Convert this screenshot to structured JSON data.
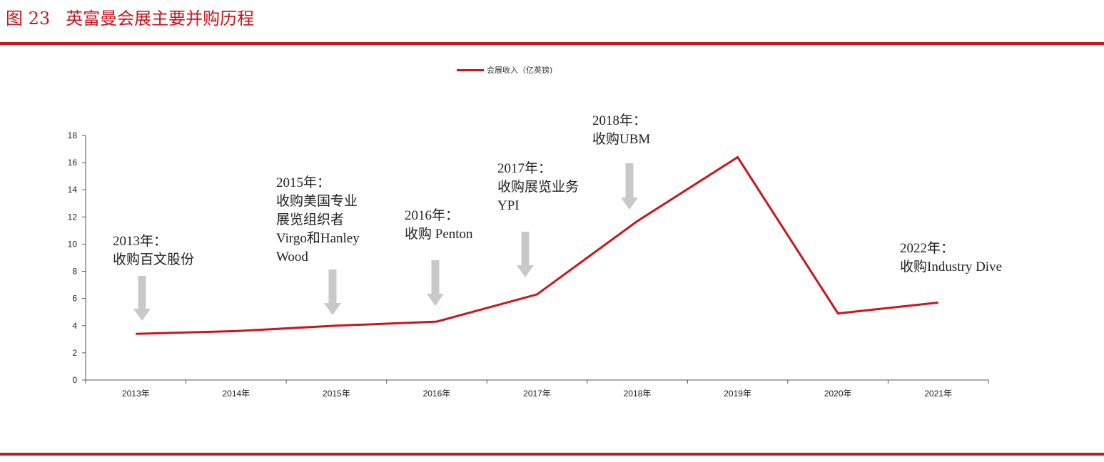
{
  "figure": {
    "number": "图 23",
    "title": "英富曼会展主要并购历程"
  },
  "chart_data": {
    "type": "line",
    "title": "",
    "xlabel": "",
    "ylabel": "",
    "categories": [
      "2013年",
      "2014年",
      "2015年",
      "2016年",
      "2017年",
      "2018年",
      "2019年",
      "2020年",
      "2021年"
    ],
    "series": [
      {
        "name": "会展收入（亿英镑)",
        "values": [
          3.4,
          3.6,
          4.0,
          4.3,
          6.3,
          11.7,
          16.4,
          4.9,
          5.7
        ],
        "color": "#c8161e"
      }
    ],
    "ylim": [
      0,
      18
    ],
    "yticks": [
      0,
      2,
      4,
      6,
      8,
      10,
      12,
      14,
      16,
      18
    ],
    "grid": false,
    "legend_position": "top-center"
  },
  "annotations": [
    {
      "id": "a2013",
      "lines": [
        "2013年：",
        "收购百文股份"
      ],
      "has_arrow": true
    },
    {
      "id": "a2015",
      "lines": [
        "2015年：",
        "收购美国专业",
        "展览组织者",
        "Virgo和Hanley",
        "Wood"
      ],
      "has_arrow": true
    },
    {
      "id": "a2016",
      "lines": [
        "2016年：",
        "收购 Penton"
      ],
      "has_arrow": true
    },
    {
      "id": "a2017",
      "lines": [
        "2017年：",
        "收购展览业务",
        "YPI"
      ],
      "has_arrow": true
    },
    {
      "id": "a2018",
      "lines": [
        "2018年：",
        "收购UBM"
      ],
      "has_arrow": true
    },
    {
      "id": "a2022",
      "lines": [
        "2022年：",
        "收购Industry Dive"
      ],
      "has_arrow": false
    }
  ],
  "colors": {
    "accent": "#c8161e",
    "arrow": "#c8c8c8",
    "axis": "#555555"
  }
}
